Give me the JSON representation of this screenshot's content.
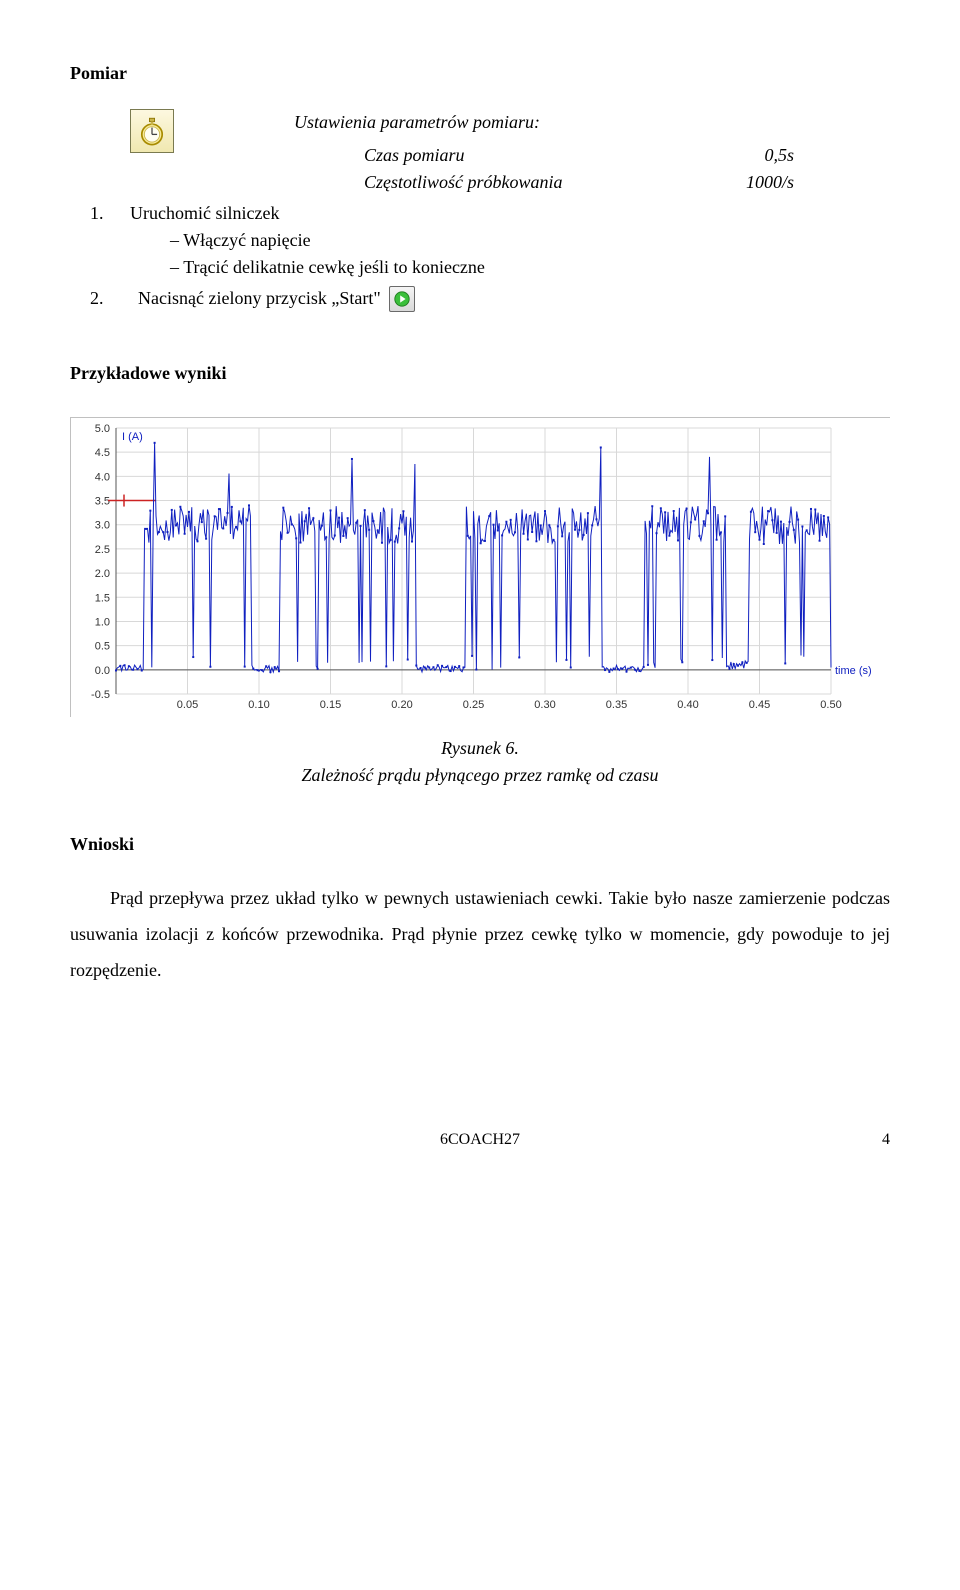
{
  "heading_pomiar": "Pomiar",
  "params": {
    "title": "Ustawienia parametrów pomiaru:",
    "rows": [
      {
        "label": "Czas pomiaru",
        "value": "0,5s"
      },
      {
        "label": "Częstotliwość próbkowania",
        "value": "1000/s"
      }
    ]
  },
  "step1_num": "1.",
  "step1_text": "Uruchomić silniczek",
  "step1_sub1": "Włączyć napięcie",
  "step1_sub2": "Trącić delikatnie cewkę jeśli to konieczne",
  "step2_num": "2.",
  "step2_text": "Nacisnąć zielony przycisk „Start\"",
  "heading_wyniki": "Przykładowe wyniki",
  "chart": {
    "type": "line",
    "y_label": "I (A)",
    "x_label": "time (s)",
    "y_ticks": [
      "5.0",
      "4.5",
      "4.0",
      "3.5",
      "3.0",
      "2.5",
      "2.0",
      "1.5",
      "1.0",
      "0.5",
      "0.0",
      "-0.5"
    ],
    "x_ticks": [
      "0.05",
      "0.10",
      "0.15",
      "0.20",
      "0.25",
      "0.30",
      "0.35",
      "0.40",
      "0.45",
      "0.50"
    ],
    "ylim": [
      -0.5,
      5.0
    ],
    "xlim": [
      0,
      0.5
    ],
    "line_color": "#1020c0",
    "marker_color": "#1020c0",
    "grid_color": "#d8d8d8",
    "axis_color": "#555555",
    "background_color": "#ffffff",
    "marker_size": 2,
    "line_width": 1,
    "cursor_line_color": "#cc2222",
    "cursor_y": 3.5
  },
  "fig_caption_1": "Rysunek 6.",
  "fig_caption_2": "Zależność prądu płynącego przez ramkę od czasu",
  "heading_wnioski": "Wnioski",
  "wnioski_body": "Prąd przepływa przez układ tylko w pewnych ustawieniach cewki. Takie było nasze zamierzenie podczas usuwania izolacji z końców przewodnika. Prąd płynie przez cewkę tylko w momencie, gdy powoduje to jej rozpędzenie.",
  "footer_code": "6COACH27",
  "page_number": "4"
}
